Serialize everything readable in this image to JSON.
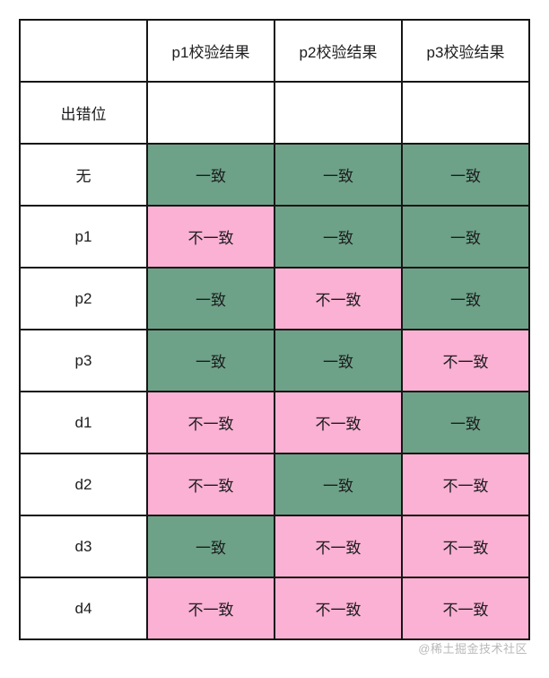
{
  "colors": {
    "match_bg": "#6EA288",
    "mismatch_bg": "#FAB1D3",
    "border": "#161616",
    "text": "#1c1c1e"
  },
  "watermark": "@稀土掘金技术社区",
  "table": {
    "header_cols": [
      "",
      "p1校验结果",
      "p2校验结果",
      "p3校验结果"
    ],
    "rows": [
      {
        "label": "出错位",
        "cells": [
          {
            "text": "",
            "status": "empty"
          },
          {
            "text": "",
            "status": "empty"
          },
          {
            "text": "",
            "status": "empty"
          }
        ]
      },
      {
        "label": "无",
        "cells": [
          {
            "text": "一致",
            "status": "match"
          },
          {
            "text": "一致",
            "status": "match"
          },
          {
            "text": "一致",
            "status": "match"
          }
        ]
      },
      {
        "label": "p1",
        "cells": [
          {
            "text": "不一致",
            "status": "mismatch"
          },
          {
            "text": "一致",
            "status": "match"
          },
          {
            "text": "一致",
            "status": "match"
          }
        ]
      },
      {
        "label": "p2",
        "cells": [
          {
            "text": "一致",
            "status": "match"
          },
          {
            "text": "不一致",
            "status": "mismatch"
          },
          {
            "text": "一致",
            "status": "match"
          }
        ]
      },
      {
        "label": "p3",
        "cells": [
          {
            "text": "一致",
            "status": "match"
          },
          {
            "text": "一致",
            "status": "match"
          },
          {
            "text": "不一致",
            "status": "mismatch"
          }
        ]
      },
      {
        "label": "d1",
        "cells": [
          {
            "text": "不一致",
            "status": "mismatch"
          },
          {
            "text": "不一致",
            "status": "mismatch"
          },
          {
            "text": "一致",
            "status": "match"
          }
        ]
      },
      {
        "label": "d2",
        "cells": [
          {
            "text": "不一致",
            "status": "mismatch"
          },
          {
            "text": "一致",
            "status": "match"
          },
          {
            "text": "不一致",
            "status": "mismatch"
          }
        ]
      },
      {
        "label": "d3",
        "cells": [
          {
            "text": "一致",
            "status": "match"
          },
          {
            "text": "不一致",
            "status": "mismatch"
          },
          {
            "text": "不一致",
            "status": "mismatch"
          }
        ]
      },
      {
        "label": "d4",
        "cells": [
          {
            "text": "不一致",
            "status": "mismatch"
          },
          {
            "text": "不一致",
            "status": "mismatch"
          },
          {
            "text": "不一致",
            "status": "mismatch"
          }
        ]
      }
    ]
  },
  "chart_data": {
    "type": "table",
    "title": "",
    "columns": [
      "出错位",
      "p1校验结果",
      "p2校验结果",
      "p3校验结果"
    ],
    "rows": [
      [
        "无",
        "一致",
        "一致",
        "一致"
      ],
      [
        "p1",
        "不一致",
        "一致",
        "一致"
      ],
      [
        "p2",
        "一致",
        "不一致",
        "一致"
      ],
      [
        "p3",
        "一致",
        "一致",
        "不一致"
      ],
      [
        "d1",
        "不一致",
        "不一致",
        "一致"
      ],
      [
        "d2",
        "不一致",
        "一致",
        "不一致"
      ],
      [
        "d3",
        "一致",
        "不一致",
        "不一致"
      ],
      [
        "d4",
        "不一致",
        "不一致",
        "不一致"
      ]
    ],
    "legend": {
      "一致": "#6EA288",
      "不一致": "#FAB1D3"
    }
  }
}
